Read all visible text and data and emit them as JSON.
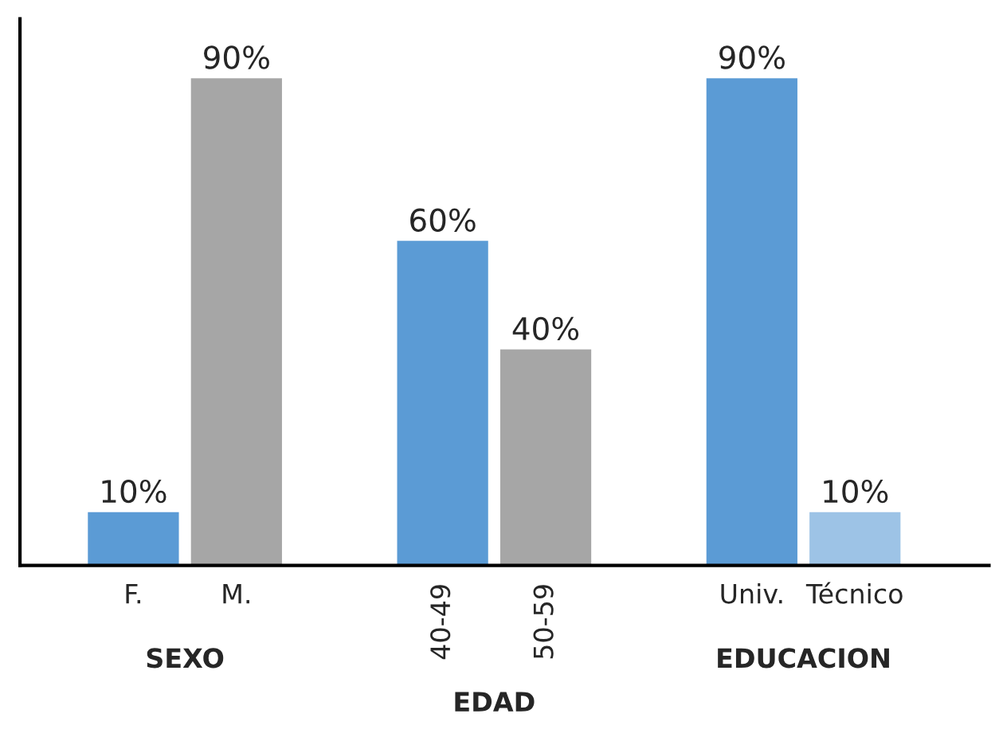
{
  "chart_data": {
    "type": "bar",
    "categories": [
      "F.",
      "M.",
      null,
      "40-49",
      "50-59",
      null,
      "Univ.",
      "Técnico"
    ],
    "values": [
      10,
      90,
      null,
      60,
      40,
      null,
      90,
      10
    ],
    "colors": [
      "#5b9bd5",
      "#a6a6a6",
      null,
      "#5b9bd5",
      "#a6a6a6",
      null,
      "#5b9bd5",
      "#9dc3e6"
    ],
    "value_labels": [
      "10%",
      "90%",
      null,
      "60%",
      "40%",
      null,
      "90%",
      "10%"
    ],
    "annotations": [
      "SEXO",
      "EDAD",
      "EDUCACION"
    ],
    "grid": false,
    "legend": false,
    "relative": false
  }
}
